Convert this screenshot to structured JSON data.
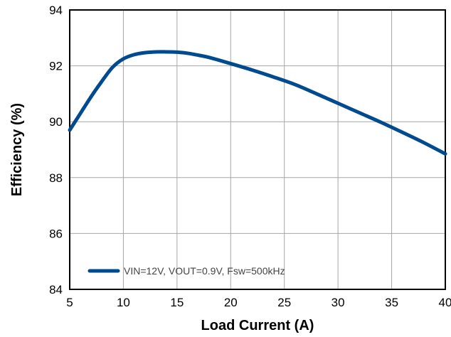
{
  "chart_data": {
    "type": "line",
    "title": "",
    "xlabel": "Load Current (A)",
    "ylabel": "Efficiency (%)",
    "xlim": [
      5,
      40
    ],
    "ylim": [
      84,
      94
    ],
    "x_ticks": [
      5,
      10,
      15,
      20,
      25,
      30,
      35,
      40
    ],
    "y_ticks": [
      84,
      86,
      88,
      90,
      92,
      94
    ],
    "grid": true,
    "legend_position": "bottom-left",
    "series": [
      {
        "name": "VIN=12V, VOUT=0.9V, Fsw=500kHz",
        "color": "#004a8f",
        "x": [
          5,
          6,
          7,
          8,
          9,
          10,
          11,
          12,
          13,
          14,
          15,
          16,
          17,
          18,
          20,
          22,
          24,
          26,
          28,
          30,
          32,
          34,
          36,
          38,
          40
        ],
        "y": [
          89.7,
          90.3,
          90.9,
          91.45,
          91.95,
          92.25,
          92.4,
          92.47,
          92.5,
          92.5,
          92.49,
          92.45,
          92.38,
          92.3,
          92.08,
          91.85,
          91.6,
          91.33,
          91.0,
          90.66,
          90.32,
          89.98,
          89.62,
          89.25,
          88.85
        ]
      }
    ]
  }
}
